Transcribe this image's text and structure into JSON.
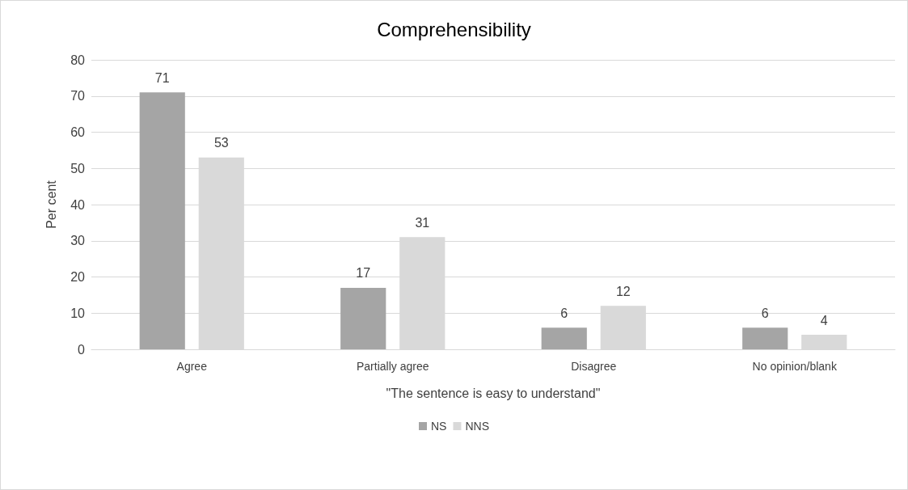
{
  "chart_data": {
    "type": "bar",
    "title": "Comprehensibility",
    "xlabel": "\"The sentence is easy to understand\"",
    "ylabel": "Per cent",
    "categories": [
      "Agree",
      "Partially agree",
      "Disagree",
      "No opinion/blank"
    ],
    "series": [
      {
        "name": "NS",
        "color": "#a5a5a5",
        "values": [
          71,
          17,
          6,
          6
        ]
      },
      {
        "name": "NNS",
        "color": "#d9d9d9",
        "values": [
          53,
          31,
          12,
          4
        ]
      }
    ],
    "ylim": [
      0,
      80
    ],
    "yticks": [
      0,
      10,
      20,
      30,
      40,
      50,
      60,
      70,
      80
    ],
    "grid": "y",
    "legend": "bottom",
    "data_labels": true
  }
}
